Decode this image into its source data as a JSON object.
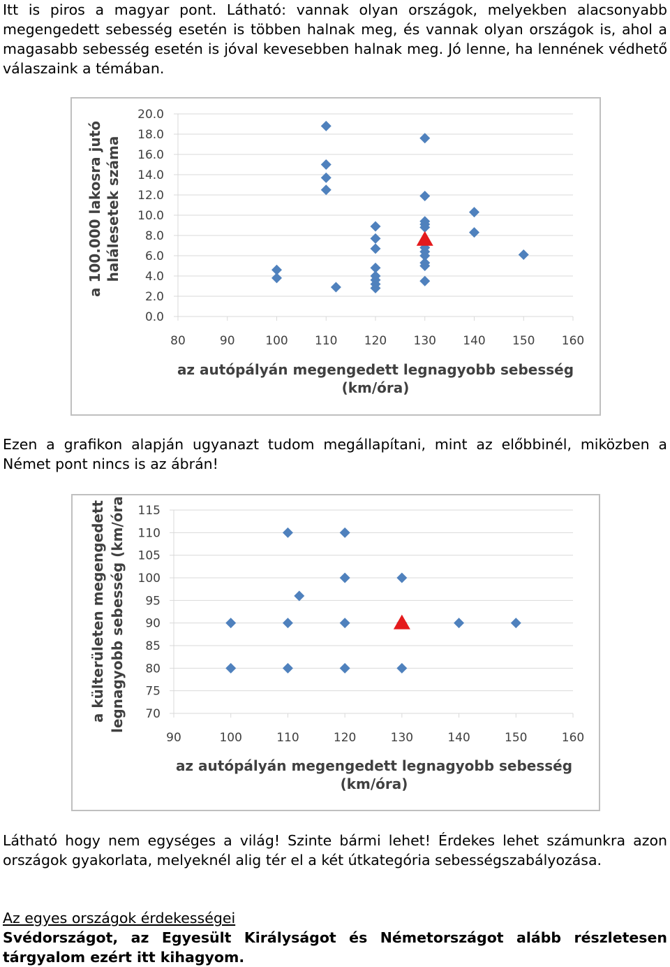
{
  "text": {
    "para1": "Itt is piros a magyar pont. Látható: vannak olyan országok, melyekben alacsonyabb megengedett sebesség esetén is többen halnak meg, és vannak olyan országok is, ahol a magasabb sebesség esetén is jóval kevesebben halnak meg. Jó lenne, ha lennének védhető válaszaink a témában.",
    "para2": "Ezen a grafikon alapján ugyanazt tudom megállapítani, mint az előbbinél, miközben a Német pont nincs is az ábrán!",
    "para3": "Látható hogy nem egységes a világ! Szinte bármi lehet! Érdekes lehet számunkra azon országok gyakorlata, melyeknél alig tér el a két útkategória sebességszabályozása.",
    "heading": "Az egyes országok érdekességei",
    "para4": "Svédországot, az Egyesült Királyságot és Németországot alább részletesen tárgyalom ezért itt kihagyom."
  },
  "colors": {
    "marker": "#4f81bd",
    "highlight": "#e41a1c",
    "grid": "#d9d9d9",
    "axis_text": "#404040"
  },
  "chart_data": [
    {
      "type": "scatter",
      "ylabel_lines": [
        "a 100.000 lakosra jutó",
        "halálesetek száma"
      ],
      "xlabel_lines": [
        "az autópályán megengedett legnagyobb sebesség",
        "(km/óra)"
      ],
      "xlim": [
        80,
        160
      ],
      "ylim": [
        0,
        20
      ],
      "x_ticks": [
        "80",
        "90",
        "100",
        "110",
        "120",
        "130",
        "140",
        "150",
        "160"
      ],
      "y_ticks": [
        "0.0",
        "2.0",
        "4.0",
        "6.0",
        "8.0",
        "10.0",
        "12.0",
        "14.0",
        "16.0",
        "18.0",
        "20.0"
      ],
      "points": [
        {
          "x": 100,
          "y": 4.6
        },
        {
          "x": 100,
          "y": 3.8
        },
        {
          "x": 110,
          "y": 18.8
        },
        {
          "x": 110,
          "y": 15.0
        },
        {
          "x": 110,
          "y": 13.7
        },
        {
          "x": 110,
          "y": 12.5
        },
        {
          "x": 112,
          "y": 2.9
        },
        {
          "x": 120,
          "y": 8.9
        },
        {
          "x": 120,
          "y": 7.7
        },
        {
          "x": 120,
          "y": 6.7
        },
        {
          "x": 120,
          "y": 4.8
        },
        {
          "x": 120,
          "y": 4.0
        },
        {
          "x": 120,
          "y": 3.6
        },
        {
          "x": 120,
          "y": 3.2
        },
        {
          "x": 120,
          "y": 2.8
        },
        {
          "x": 130,
          "y": 17.6
        },
        {
          "x": 130,
          "y": 11.9
        },
        {
          "x": 130,
          "y": 9.4
        },
        {
          "x": 130,
          "y": 9.1
        },
        {
          "x": 130,
          "y": 8.8
        },
        {
          "x": 130,
          "y": 6.8
        },
        {
          "x": 130,
          "y": 6.4
        },
        {
          "x": 130,
          "y": 6.0
        },
        {
          "x": 130,
          "y": 5.3
        },
        {
          "x": 130,
          "y": 5.0
        },
        {
          "x": 130,
          "y": 3.5
        },
        {
          "x": 140,
          "y": 10.3
        },
        {
          "x": 140,
          "y": 8.3
        },
        {
          "x": 150,
          "y": 6.1
        }
      ],
      "highlight": {
        "x": 130,
        "y": 7.6
      }
    },
    {
      "type": "scatter",
      "ylabel_lines": [
        "a külterületen megengedett",
        "legnagyobb sebesség (km/óra)"
      ],
      "xlabel_lines": [
        "az autópályán megengedett legnagyobb sebesség",
        "(km/óra)"
      ],
      "xlim": [
        90,
        160
      ],
      "ylim": [
        70,
        115
      ],
      "x_ticks": [
        "90",
        "100",
        "110",
        "120",
        "130",
        "140",
        "150",
        "160"
      ],
      "y_ticks": [
        "70",
        "75",
        "80",
        "85",
        "90",
        "95",
        "100",
        "105",
        "110",
        "115"
      ],
      "points": [
        {
          "x": 100,
          "y": 90
        },
        {
          "x": 100,
          "y": 80
        },
        {
          "x": 110,
          "y": 110
        },
        {
          "x": 110,
          "y": 90
        },
        {
          "x": 110,
          "y": 80
        },
        {
          "x": 112,
          "y": 96
        },
        {
          "x": 120,
          "y": 110
        },
        {
          "x": 120,
          "y": 100
        },
        {
          "x": 120,
          "y": 90
        },
        {
          "x": 120,
          "y": 80
        },
        {
          "x": 130,
          "y": 100
        },
        {
          "x": 130,
          "y": 90
        },
        {
          "x": 130,
          "y": 80
        },
        {
          "x": 140,
          "y": 90
        },
        {
          "x": 150,
          "y": 90
        }
      ],
      "highlight": {
        "x": 130,
        "y": 90
      }
    }
  ]
}
